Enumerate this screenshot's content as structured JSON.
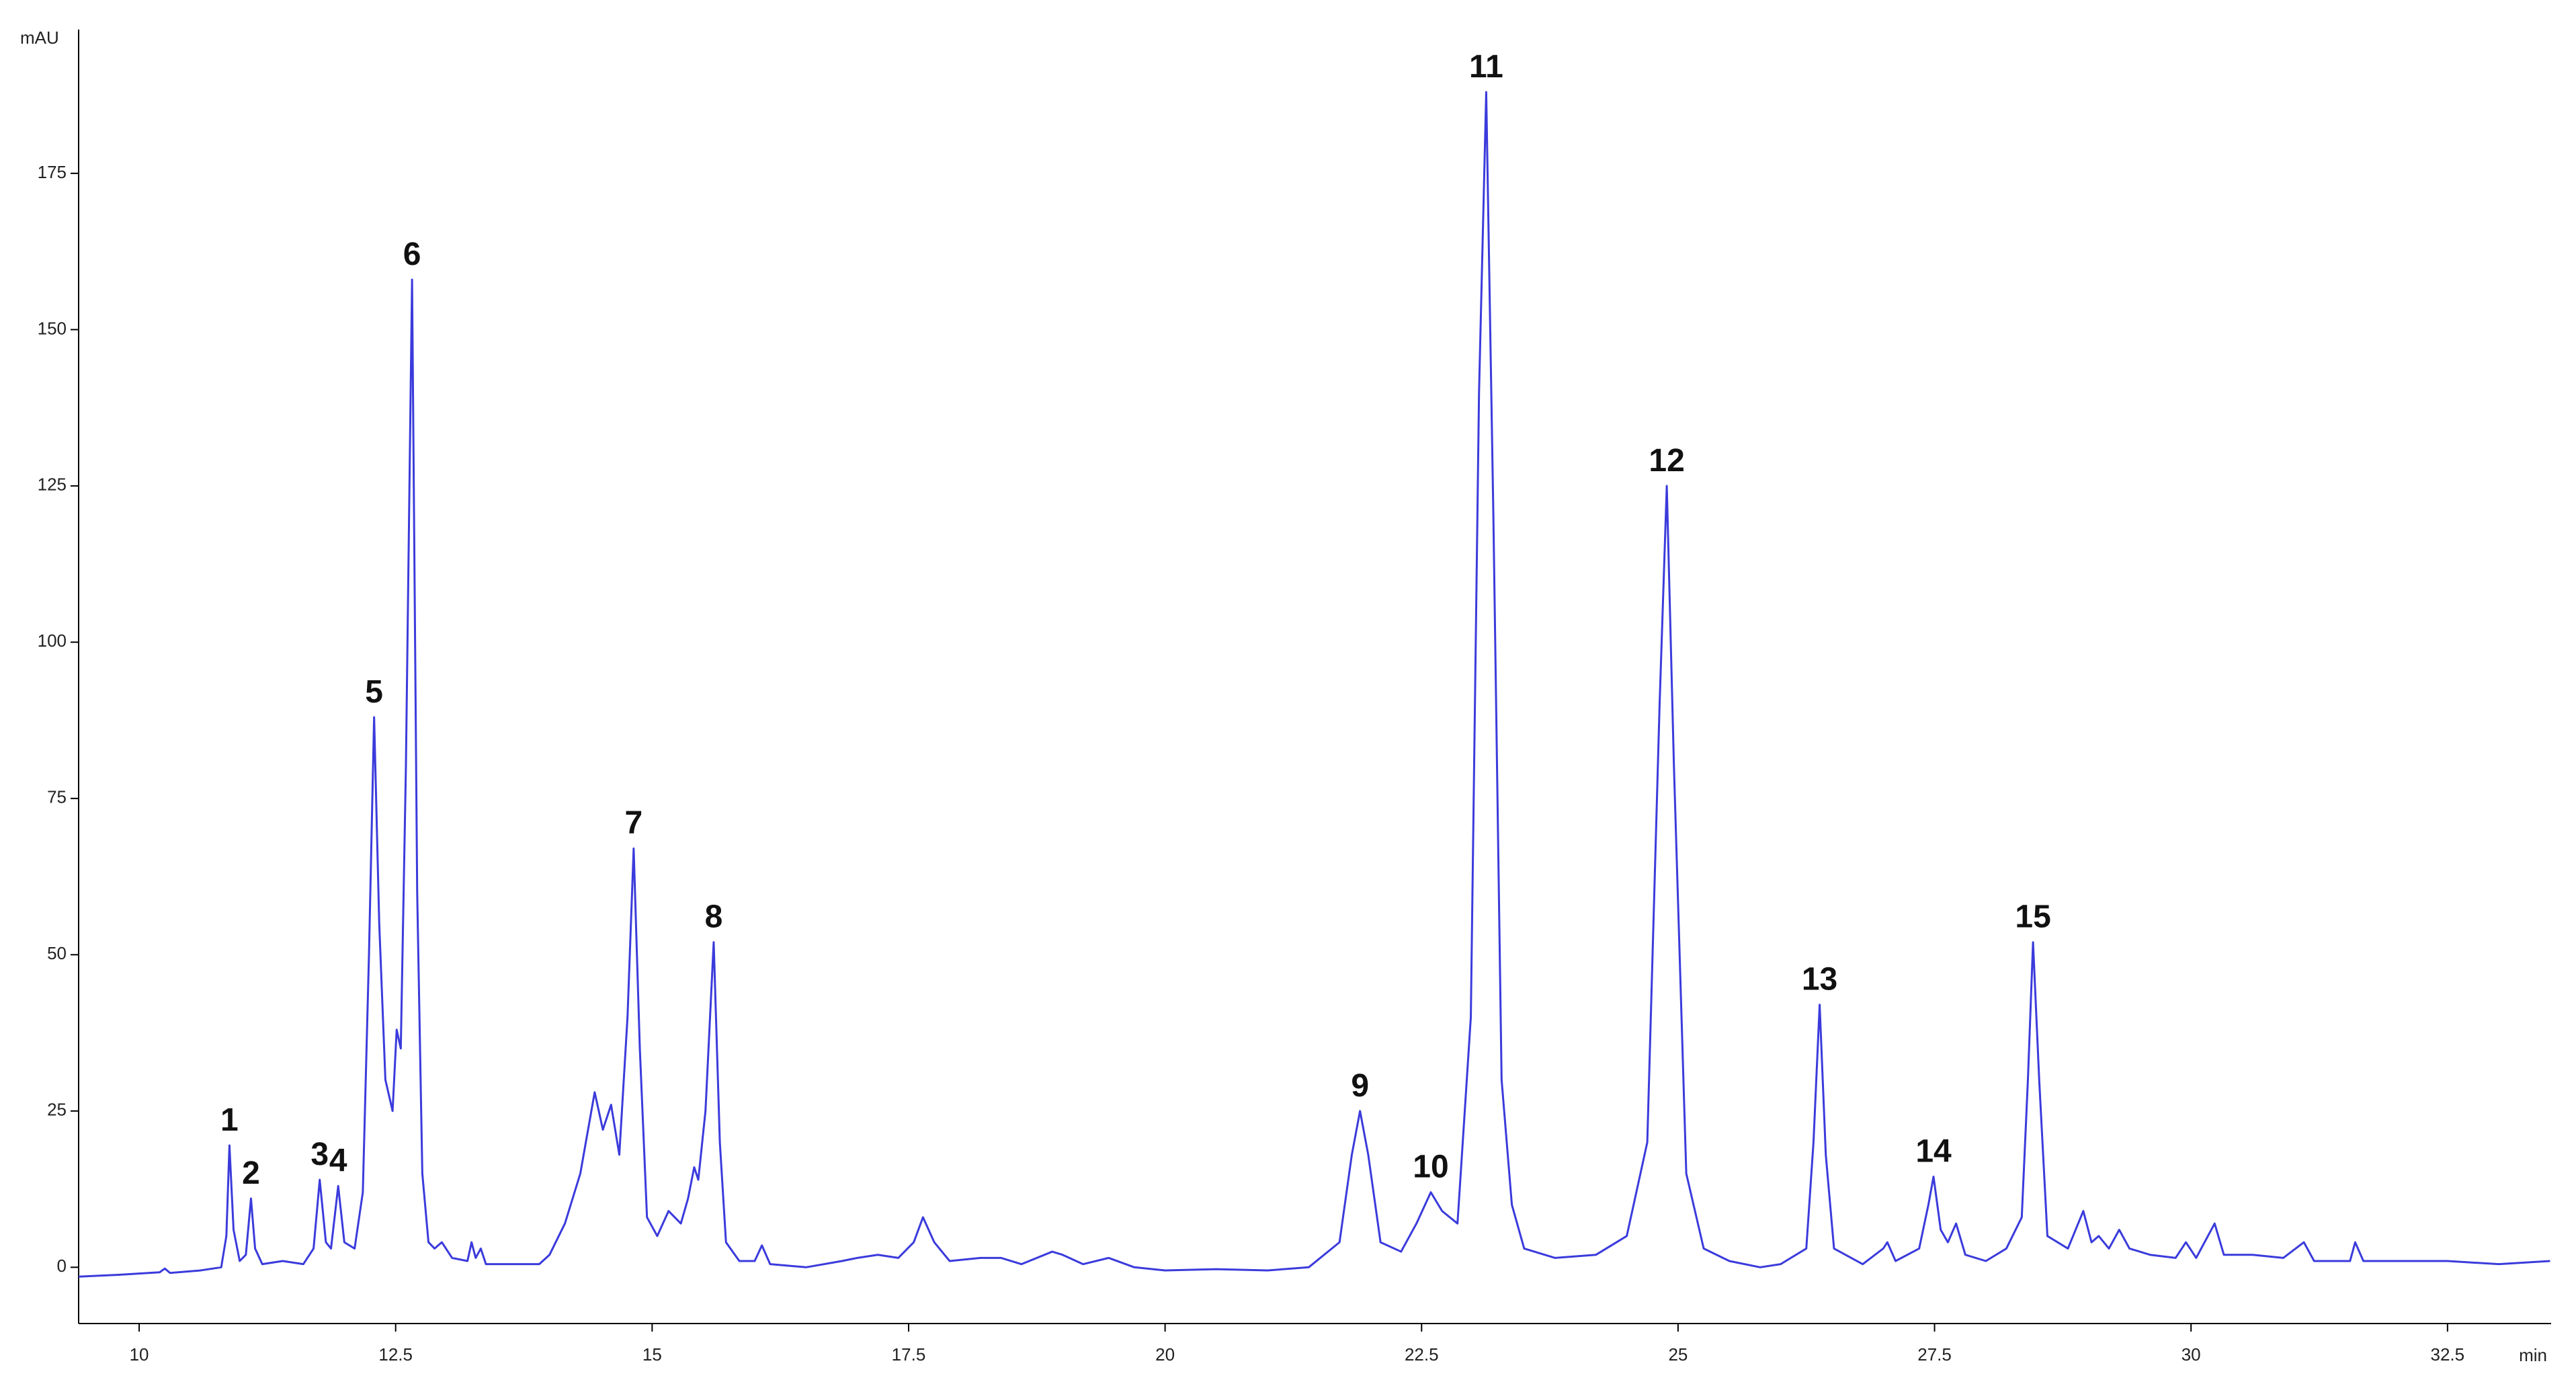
{
  "chart_data": {
    "type": "line",
    "x_label": "min",
    "y_label": "mAU",
    "xlim": [
      9.41,
      33.51
    ],
    "ylim": [
      -9,
      198
    ],
    "xticks": [
      10,
      12.5,
      15,
      17.5,
      20,
      22.5,
      25,
      27.5,
      30,
      32.5
    ],
    "yticks": [
      0,
      25,
      50,
      75,
      100,
      125,
      150,
      175
    ],
    "x": [
      9.41,
      9.8,
      10.2,
      10.25,
      10.3,
      10.6,
      10.8,
      10.85,
      10.88,
      10.92,
      10.98,
      11.04,
      11.09,
      11.13,
      11.2,
      11.4,
      11.6,
      11.7,
      11.76,
      11.82,
      11.87,
      11.94,
      12.0,
      12.1,
      12.18,
      12.24,
      12.29,
      12.34,
      12.4,
      12.47,
      12.51,
      12.55,
      12.6,
      12.66,
      12.71,
      12.76,
      12.82,
      12.88,
      12.95,
      13.05,
      13.2,
      13.24,
      13.28,
      13.33,
      13.38,
      13.6,
      13.9,
      14.0,
      14.15,
      14.3,
      14.44,
      14.52,
      14.6,
      14.68,
      14.76,
      14.82,
      14.88,
      14.95,
      15.05,
      15.16,
      15.28,
      15.35,
      15.41,
      15.45,
      15.52,
      15.6,
      15.66,
      15.72,
      15.85,
      16.0,
      16.07,
      16.15,
      16.5,
      16.85,
      17.0,
      17.2,
      17.4,
      17.55,
      17.64,
      17.75,
      17.9,
      18.2,
      18.4,
      18.6,
      18.9,
      19.0,
      19.2,
      19.45,
      19.7,
      20.0,
      20.5,
      21.0,
      21.4,
      21.7,
      21.82,
      21.9,
      21.98,
      22.1,
      22.3,
      22.45,
      22.59,
      22.7,
      22.85,
      22.98,
      23.06,
      23.13,
      23.2,
      23.28,
      23.38,
      23.5,
      23.8,
      24.2,
      24.5,
      24.7,
      24.82,
      24.89,
      24.96,
      25.08,
      25.25,
      25.5,
      25.8,
      26.0,
      26.25,
      26.32,
      26.38,
      26.44,
      26.52,
      26.8,
      27.0,
      27.04,
      27.12,
      27.35,
      27.44,
      27.49,
      27.56,
      27.63,
      27.71,
      27.8,
      28.0,
      28.2,
      28.35,
      28.41,
      28.46,
      28.52,
      28.6,
      28.8,
      28.95,
      29.03,
      29.1,
      29.2,
      29.3,
      29.4,
      29.6,
      29.85,
      29.95,
      30.05,
      30.23,
      30.32,
      30.6,
      30.9,
      31.1,
      31.2,
      31.55,
      31.6,
      31.68,
      32.0,
      32.5,
      33.0,
      33.5
    ],
    "series": [
      {
        "color": "#3b3bdc",
        "values": [
          -1.5,
          -1.2,
          -0.8,
          -0.2,
          -0.9,
          -0.5,
          0,
          5,
          19.5,
          6,
          1,
          2,
          11,
          3,
          0.5,
          1,
          0.5,
          3,
          14,
          4,
          3,
          13,
          4,
          3,
          12,
          50,
          88,
          55,
          30,
          25,
          38,
          35,
          80,
          158,
          60,
          15,
          4,
          3,
          4,
          1.5,
          1,
          4,
          1.5,
          3,
          0.5,
          0.5,
          0.5,
          2,
          7,
          15,
          28,
          22,
          26,
          18,
          40,
          67,
          35,
          8,
          5,
          9,
          7,
          11,
          16,
          14,
          25,
          52,
          20,
          4,
          1,
          1,
          3.5,
          0.5,
          0,
          1,
          1.5,
          2,
          1.5,
          4,
          8,
          4,
          1,
          1.5,
          1.5,
          0.5,
          2.5,
          2,
          0.5,
          1.5,
          0,
          -0.5,
          -0.3,
          -0.5,
          0,
          4,
          18,
          25,
          18,
          4,
          2.5,
          7,
          12,
          9,
          7,
          40,
          140,
          188,
          120,
          30,
          10,
          3,
          1.5,
          2,
          5,
          20,
          90,
          125,
          80,
          15,
          3,
          1,
          0,
          0.5,
          3,
          20,
          42,
          18,
          3,
          0.5,
          3,
          4,
          1,
          3,
          10,
          14.5,
          6,
          4,
          7,
          2,
          1,
          3,
          8,
          30,
          52,
          30,
          5,
          3,
          9,
          4,
          5,
          3,
          6,
          3,
          2,
          1.5,
          4,
          1.5,
          7,
          2,
          2,
          1.5,
          4,
          1,
          1,
          4,
          1,
          1,
          1,
          0.5,
          1
        ]
      }
    ],
    "annotations": [
      {
        "label": "1",
        "x": 10.88,
        "y": 19.5
      },
      {
        "label": "2",
        "x": 11.09,
        "y": 11
      },
      {
        "label": "3",
        "x": 11.76,
        "y": 14
      },
      {
        "label": "4",
        "x": 11.94,
        "y": 13
      },
      {
        "label": "5",
        "x": 12.29,
        "y": 88
      },
      {
        "label": "6",
        "x": 12.66,
        "y": 158
      },
      {
        "label": "7",
        "x": 14.82,
        "y": 67
      },
      {
        "label": "8",
        "x": 15.6,
        "y": 52
      },
      {
        "label": "9",
        "x": 21.9,
        "y": 25
      },
      {
        "label": "10",
        "x": 22.59,
        "y": 12
      },
      {
        "label": "11",
        "x": 23.13,
        "y": 188
      },
      {
        "label": "12",
        "x": 24.89,
        "y": 125
      },
      {
        "label": "13",
        "x": 26.38,
        "y": 42
      },
      {
        "label": "14",
        "x": 27.49,
        "y": 14.5
      },
      {
        "label": "15",
        "x": 28.46,
        "y": 52
      }
    ]
  }
}
